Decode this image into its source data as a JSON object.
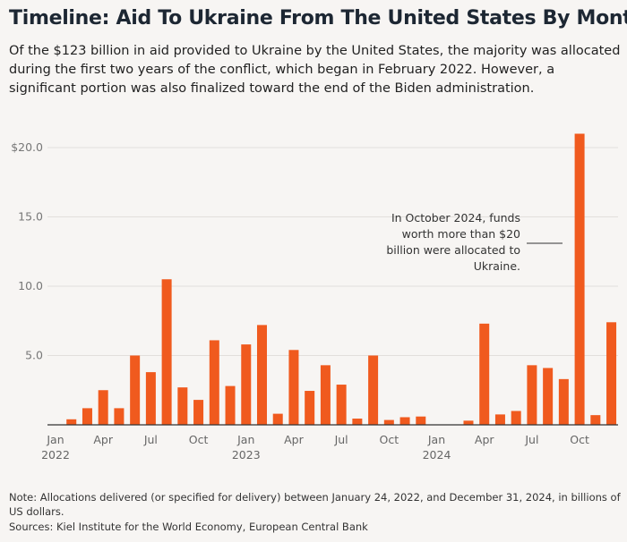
{
  "title": "Timeline: Aid To Ukraine From The United States By Month",
  "subtitle": "Of the $123 billion in aid provided to Ukraine by the United States, the majority was allocated during the first two years of the conflict, which began in February 2022. However, a significant portion was also finalized toward the end of the Biden administration.",
  "note": "Note: Allocations delivered (or specified for delivery) between January 24, 2022, and December 31, 2024, in billions of US dollars.",
  "sources": "Sources: Kiel Institute for the World Economy, European Central Bank",
  "chart_data": {
    "type": "bar",
    "bar_color": "#f05a1e",
    "ylim": [
      0,
      21
    ],
    "y_ticks": [
      "$20.0",
      "15.0",
      "10.0",
      "5.0"
    ],
    "y_tick_values": [
      20,
      15,
      10,
      5
    ],
    "grid": true,
    "x_tick_labels": [
      {
        "month": "Jan",
        "year": "2022",
        "index": 0
      },
      {
        "month": "Apr",
        "year": "",
        "index": 3
      },
      {
        "month": "Jul",
        "year": "",
        "index": 6
      },
      {
        "month": "Oct",
        "year": "",
        "index": 9
      },
      {
        "month": "Jan",
        "year": "2023",
        "index": 12
      },
      {
        "month": "Apr",
        "year": "",
        "index": 15
      },
      {
        "month": "Jul",
        "year": "",
        "index": 18
      },
      {
        "month": "Oct",
        "year": "",
        "index": 21
      },
      {
        "month": "Jan",
        "year": "2024",
        "index": 24
      },
      {
        "month": "Apr",
        "year": "",
        "index": 27
      },
      {
        "month": "Jul",
        "year": "",
        "index": 30
      },
      {
        "month": "Oct",
        "year": "",
        "index": 33
      }
    ],
    "categories": [
      "2022-01",
      "2022-02",
      "2022-03",
      "2022-04",
      "2022-05",
      "2022-06",
      "2022-07",
      "2022-08",
      "2022-09",
      "2022-10",
      "2022-11",
      "2022-12",
      "2023-01",
      "2023-02",
      "2023-03",
      "2023-04",
      "2023-05",
      "2023-06",
      "2023-07",
      "2023-08",
      "2023-09",
      "2023-10",
      "2023-11",
      "2023-12",
      "2024-01",
      "2024-02",
      "2024-03",
      "2024-04",
      "2024-05",
      "2024-06",
      "2024-07",
      "2024-08",
      "2024-09",
      "2024-10",
      "2024-11",
      "2024-12"
    ],
    "values": [
      0,
      0.4,
      1.2,
      2.5,
      1.2,
      5.0,
      3.8,
      10.5,
      2.7,
      1.8,
      6.1,
      2.8,
      5.8,
      7.2,
      0.8,
      5.4,
      2.45,
      4.3,
      2.9,
      0.45,
      5.0,
      0.35,
      0.55,
      0.6,
      0,
      0,
      0.3,
      7.3,
      0.75,
      1.0,
      4.3,
      4.1,
      3.3,
      21.0,
      0.7,
      7.4
    ],
    "annotation": [
      "In October 2024, funds",
      "worth more than $20",
      "billion were allocated to",
      "Ukraine."
    ]
  }
}
